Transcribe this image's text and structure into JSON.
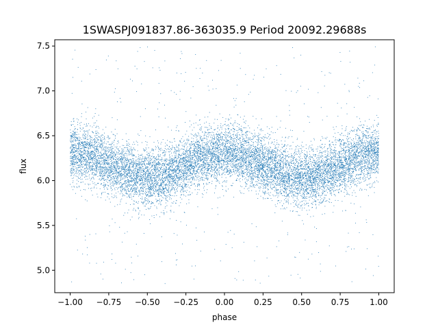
{
  "chart_data": {
    "type": "scatter",
    "title": "1SWASPJ091837.86-363035.9 Period 20092.29688s",
    "xlabel": "phase",
    "ylabel": "flux",
    "xlim": [
      -1.1,
      1.1
    ],
    "ylim": [
      4.75,
      7.57
    ],
    "xticks": [
      -1.0,
      -0.75,
      -0.5,
      -0.25,
      0.0,
      0.25,
      0.5,
      0.75,
      1.0
    ],
    "xtick_labels": [
      "−1.00",
      "−0.75",
      "−0.50",
      "−0.25",
      "0.00",
      "0.25",
      "0.50",
      "0.75",
      "1.00"
    ],
    "yticks": [
      5.0,
      5.5,
      6.0,
      6.5,
      7.0,
      7.5
    ],
    "ytick_labels": [
      "5.0",
      "5.5",
      "6.0",
      "6.5",
      "7.0",
      "7.5"
    ],
    "grid": false,
    "marker_color": "#1f77b4",
    "series": [
      {
        "x": [
          -1.0,
          -0.875,
          -0.75,
          -0.625,
          -0.5,
          -0.375,
          -0.25,
          -0.125,
          0.0,
          0.125,
          0.25,
          0.375,
          0.5,
          0.625,
          0.75,
          0.875,
          1.0
        ],
        "y": [
          6.32,
          6.28,
          6.18,
          6.08,
          6.02,
          6.06,
          6.17,
          6.27,
          6.32,
          6.28,
          6.18,
          6.08,
          6.02,
          6.06,
          6.17,
          6.27,
          6.32
        ],
        "scatter_sd": 0.16,
        "outlier_range": [
          4.85,
          7.5
        ]
      }
    ]
  }
}
